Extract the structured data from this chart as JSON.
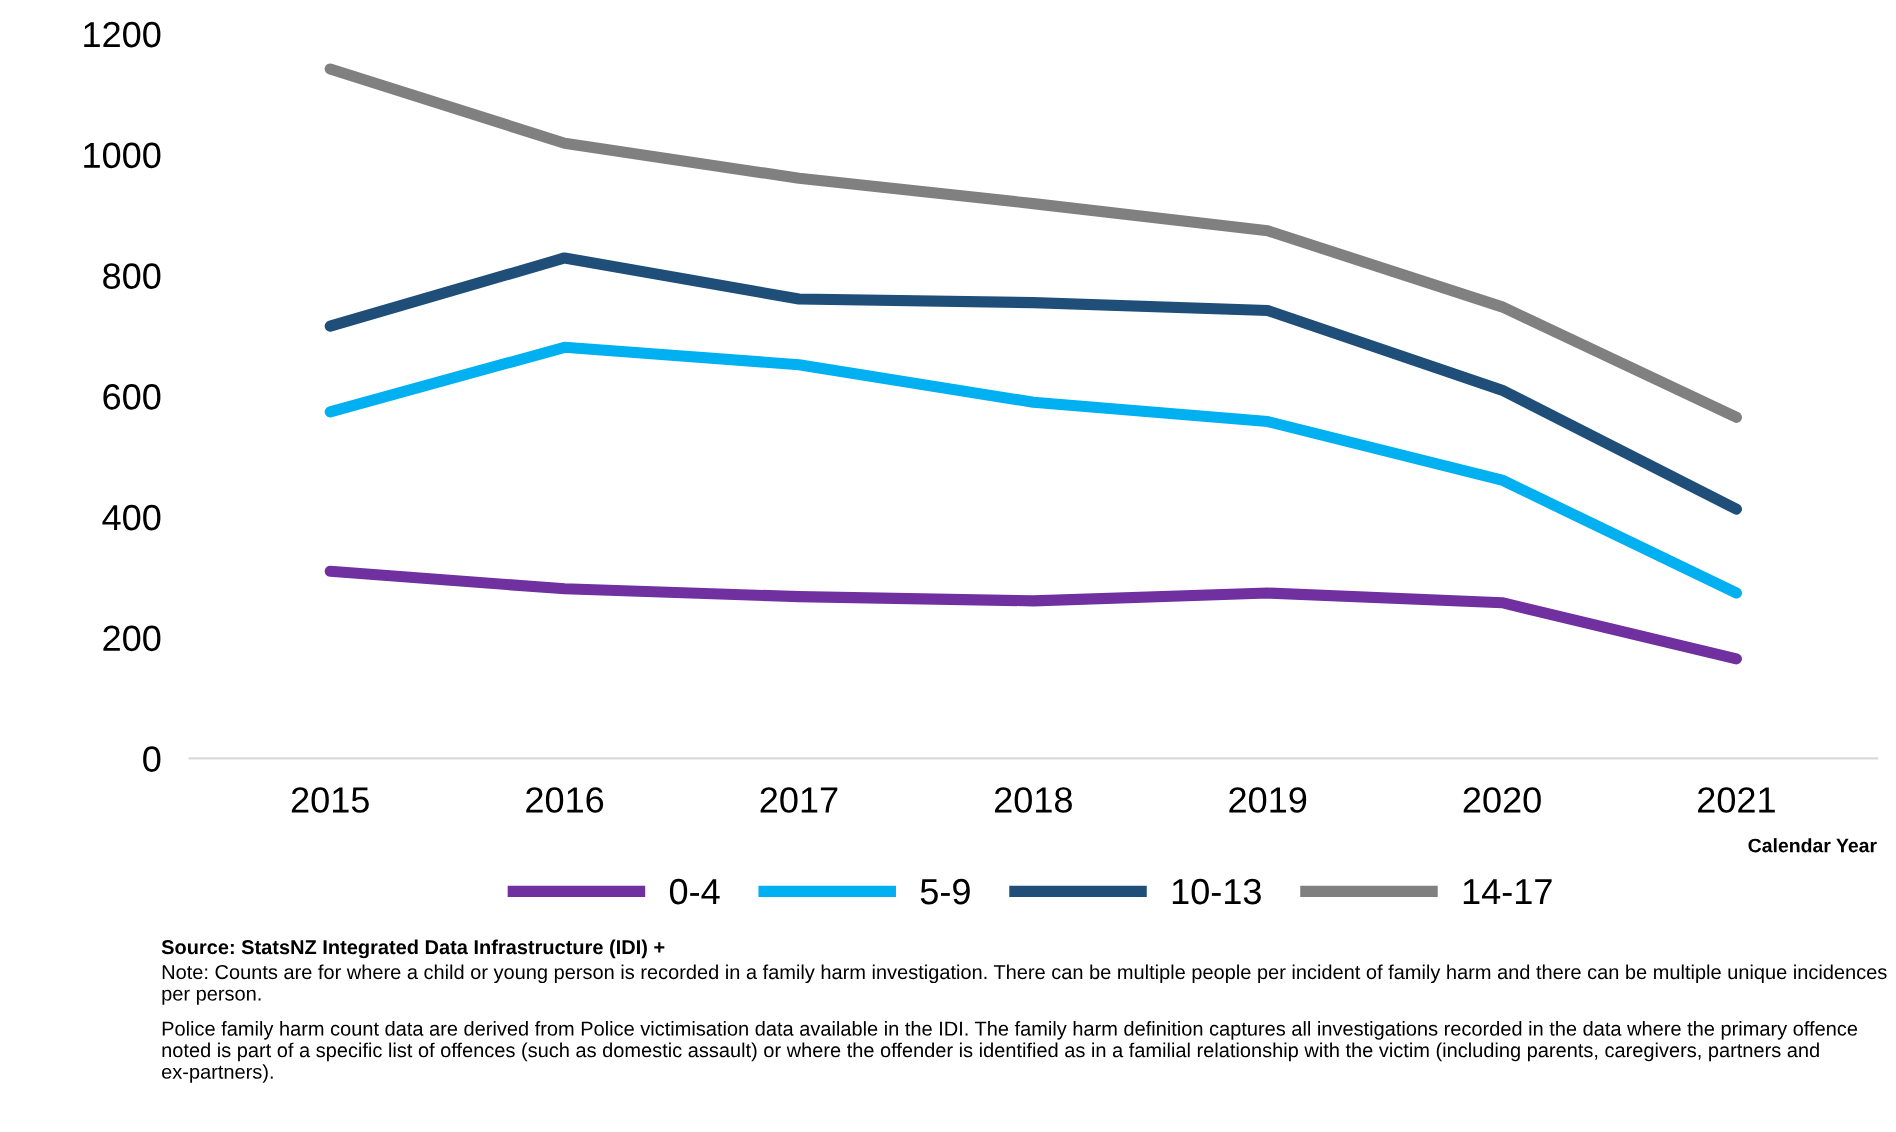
{
  "chart_data": {
    "type": "line",
    "xlabel": "Calendar Year",
    "categories": [
      "2015",
      "2016",
      "2017",
      "2018",
      "2019",
      "2020",
      "2021"
    ],
    "series": [
      {
        "name": "0-4",
        "color": "#7030a0",
        "values": [
          310,
          281,
          268,
          261,
          274,
          258,
          165
        ]
      },
      {
        "name": "5-9",
        "color": "#00b0f0",
        "values": [
          574,
          681,
          652,
          590,
          558,
          461,
          274
        ]
      },
      {
        "name": "10-13",
        "color": "#1f4e79",
        "values": [
          716,
          829,
          761,
          755,
          742,
          610,
          413
        ]
      },
      {
        "name": "14-17",
        "color": "#808080",
        "values": [
          1142,
          1019,
          961,
          919,
          874,
          748,
          565
        ]
      }
    ],
    "ylim": [
      0,
      1200
    ],
    "yticks": [
      0,
      200,
      400,
      600,
      800,
      1000,
      1200
    ],
    "grid": false,
    "legend": "bottom",
    "marker": "none",
    "line_style": "solid",
    "annotations": [
      "Source: StatsNZ Integrated Data Infrastructure (IDI) +",
      "Note: Counts are for where a child or young person is recorded in a family harm investigation. There can be multiple people per incident of family harm and there can be multiple unique incidences per person.",
      "Police family harm count data are derived from Police victimisation data available in the IDI. The family harm definition captures all investigations recorded in the data where the primary offence noted is part of a specific list of offences (such as domestic assault) or where the offender is identified as in a familial relationship with the victim (including parents, caregivers, partners and ex-partners)."
    ]
  }
}
